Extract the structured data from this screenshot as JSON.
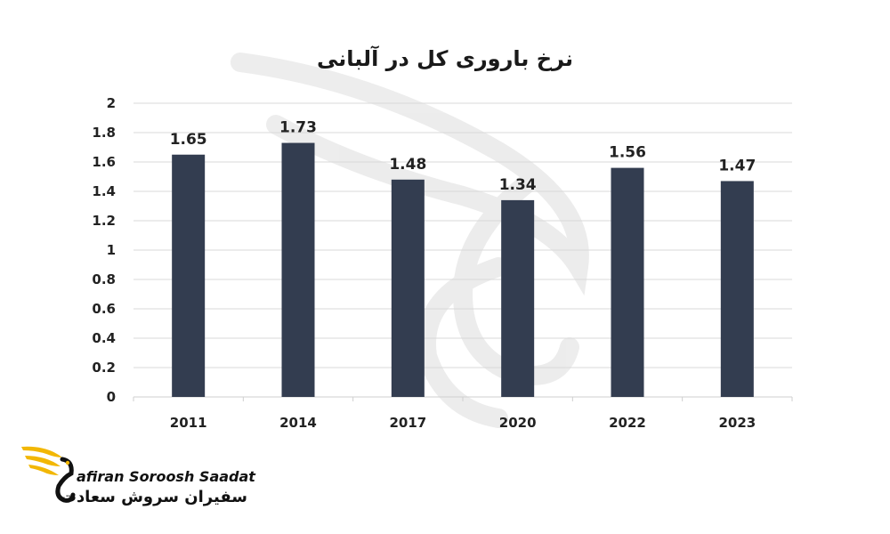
{
  "chart_data": {
    "type": "bar",
    "title": "نرخ باروری کل در آلبانی",
    "categories": [
      "2011",
      "2014",
      "2017",
      "2020",
      "2022",
      "2023"
    ],
    "values": [
      1.65,
      1.73,
      1.48,
      1.34,
      1.56,
      1.47
    ],
    "data_labels": [
      "1.65",
      "1.73",
      "1.48",
      "1.34",
      "1.56",
      "1.47"
    ],
    "y_ticks": [
      "0",
      "0.2",
      "0.4",
      "0.6",
      "0.8",
      "1",
      "1.2",
      "1.4",
      "1.6",
      "1.8",
      "2"
    ],
    "ylim": [
      0,
      2
    ],
    "xlabel": "",
    "ylabel": "",
    "grid": true,
    "legend": "none",
    "bar_color": "#333d50"
  },
  "logo": {
    "text_en": "afiran Soroosh Saadat",
    "text_fa": "سفیران سروش سعادت",
    "accent_color": "#f2b705",
    "icon": "bird-logo-icon"
  }
}
